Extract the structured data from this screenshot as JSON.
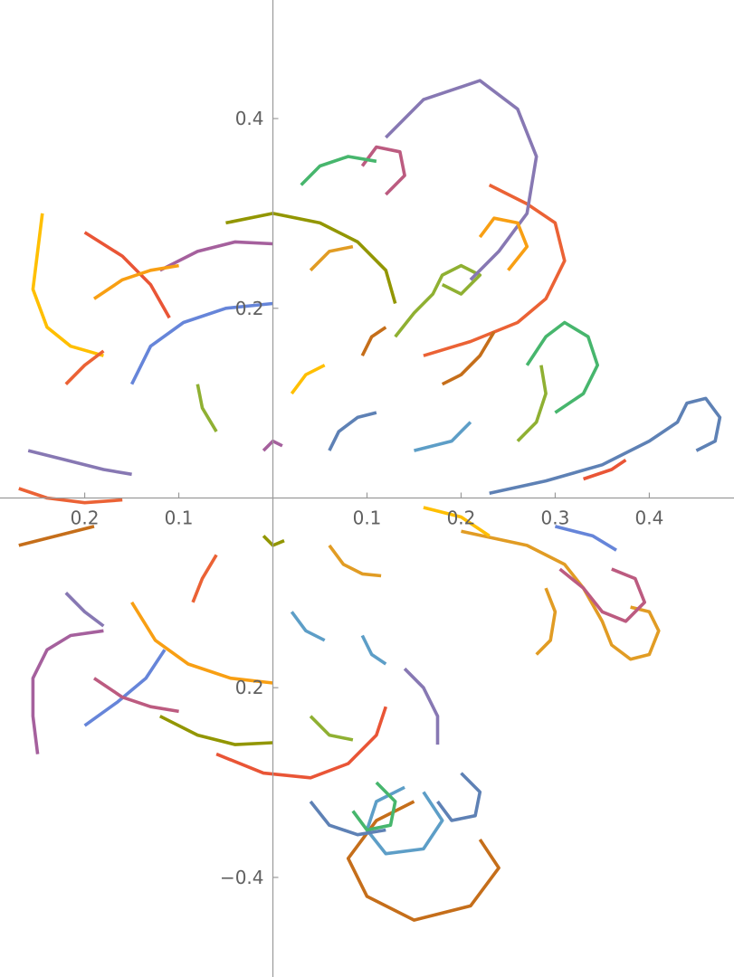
{
  "chart_data": {
    "type": "line",
    "title": "",
    "xlabel": "",
    "ylabel": "",
    "xlim": [
      -0.29,
      0.49
    ],
    "ylim": [
      -0.505,
      0.525
    ],
    "grid": false,
    "x_ticks": [
      {
        "value": -0.2,
        "label": "0.2"
      },
      {
        "value": -0.1,
        "label": "0.1"
      },
      {
        "value": 0.1,
        "label": "0.1"
      },
      {
        "value": 0.2,
        "label": "0.2"
      },
      {
        "value": 0.3,
        "label": "0.3"
      },
      {
        "value": 0.4,
        "label": "0.4"
      }
    ],
    "y_ticks": [
      {
        "value": 0.4,
        "label": "0.4"
      },
      {
        "value": 0.2,
        "label": "0.2"
      },
      {
        "value": -0.2,
        "label": "0.2"
      },
      {
        "value": -0.4,
        "label": "−0.4"
      }
    ],
    "palette": [
      "#5e81b5",
      "#e19c24",
      "#8fb032",
      "#eb6235",
      "#8778b3",
      "#c56e1a",
      "#5d9ec7",
      "#ffbf00",
      "#a5609d",
      "#929600",
      "#e95536",
      "#6685d9",
      "#f89f13",
      "#bc5b80",
      "#47b66d"
    ],
    "series": [
      {
        "values": [
          [
            0.45,
            0.05
          ],
          [
            0.47,
            0.06
          ],
          [
            0.475,
            0.085
          ],
          [
            0.46,
            0.105
          ],
          [
            0.44,
            0.1
          ],
          [
            0.43,
            0.08
          ],
          [
            0.4,
            0.06
          ],
          [
            0.35,
            0.035
          ],
          [
            0.29,
            0.018
          ],
          [
            0.23,
            0.005
          ]
        ]
      },
      {
        "values": [
          [
            0.38,
            -0.115
          ],
          [
            0.4,
            -0.12
          ],
          [
            0.41,
            -0.14
          ],
          [
            0.4,
            -0.165
          ],
          [
            0.38,
            -0.17
          ],
          [
            0.36,
            -0.155
          ],
          [
            0.35,
            -0.13
          ],
          [
            0.33,
            -0.095
          ],
          [
            0.31,
            -0.07
          ],
          [
            0.27,
            -0.05
          ],
          [
            0.2,
            -0.035
          ]
        ]
      },
      {
        "values": [
          [
            0.18,
            0.225
          ],
          [
            0.2,
            0.215
          ],
          [
            0.22,
            0.235
          ],
          [
            0.2,
            0.245
          ],
          [
            0.18,
            0.235
          ],
          [
            0.17,
            0.215
          ],
          [
            0.15,
            0.195
          ],
          [
            0.13,
            0.17
          ]
        ]
      },
      {
        "values": [
          [
            0.23,
            0.33
          ],
          [
            0.27,
            0.31
          ],
          [
            0.3,
            0.29
          ],
          [
            0.31,
            0.25
          ],
          [
            0.29,
            0.21
          ],
          [
            0.26,
            0.185
          ],
          [
            0.21,
            0.165
          ],
          [
            0.16,
            0.15
          ]
        ]
      },
      {
        "values": [
          [
            0.12,
            0.38
          ],
          [
            0.16,
            0.42
          ],
          [
            0.22,
            0.44
          ],
          [
            0.26,
            0.41
          ],
          [
            0.28,
            0.36
          ],
          [
            0.27,
            0.3
          ],
          [
            0.24,
            0.26
          ],
          [
            0.21,
            0.23
          ]
        ]
      },
      {
        "values": [
          [
            0.22,
            -0.36
          ],
          [
            0.24,
            -0.39
          ],
          [
            0.21,
            -0.43
          ],
          [
            0.15,
            -0.445
          ],
          [
            0.1,
            -0.42
          ],
          [
            0.08,
            -0.38
          ],
          [
            0.11,
            -0.34
          ],
          [
            0.15,
            -0.32
          ]
        ]
      },
      {
        "values": [
          [
            0.16,
            -0.31
          ],
          [
            0.18,
            -0.34
          ],
          [
            0.16,
            -0.37
          ],
          [
            0.12,
            -0.375
          ],
          [
            0.1,
            -0.35
          ],
          [
            0.11,
            -0.32
          ],
          [
            0.14,
            -0.305
          ]
        ]
      },
      {
        "values": [
          [
            -0.245,
            0.3
          ],
          [
            -0.25,
            0.26
          ],
          [
            -0.255,
            0.22
          ],
          [
            -0.24,
            0.18
          ],
          [
            -0.215,
            0.16
          ],
          [
            -0.18,
            0.15
          ]
        ]
      },
      {
        "values": [
          [
            -0.25,
            -0.27
          ],
          [
            -0.255,
            -0.23
          ],
          [
            -0.255,
            -0.19
          ],
          [
            -0.24,
            -0.16
          ],
          [
            -0.215,
            -0.145
          ],
          [
            -0.18,
            -0.14
          ]
        ]
      },
      {
        "values": [
          [
            -0.05,
            0.29
          ],
          [
            0.0,
            0.3
          ],
          [
            0.05,
            0.29
          ],
          [
            0.09,
            0.27
          ],
          [
            0.12,
            0.24
          ],
          [
            0.13,
            0.205
          ]
        ]
      },
      {
        "values": [
          [
            -0.06,
            -0.27
          ],
          [
            -0.01,
            -0.29
          ],
          [
            0.04,
            -0.295
          ],
          [
            0.08,
            -0.28
          ],
          [
            0.11,
            -0.25
          ],
          [
            0.12,
            -0.22
          ]
        ]
      },
      {
        "values": [
          [
            -0.15,
            0.12
          ],
          [
            -0.13,
            0.16
          ],
          [
            -0.095,
            0.185
          ],
          [
            -0.05,
            0.2
          ],
          [
            0.0,
            0.205
          ]
        ]
      },
      {
        "values": [
          [
            -0.15,
            -0.11
          ],
          [
            -0.125,
            -0.15
          ],
          [
            -0.09,
            -0.175
          ],
          [
            -0.045,
            -0.19
          ],
          [
            0.0,
            -0.195
          ]
        ]
      },
      {
        "values": [
          [
            0.36,
            -0.075
          ],
          [
            0.385,
            -0.085
          ],
          [
            0.395,
            -0.11
          ],
          [
            0.375,
            -0.13
          ],
          [
            0.35,
            -0.12
          ],
          [
            0.33,
            -0.095
          ],
          [
            0.305,
            -0.075
          ]
        ]
      },
      {
        "values": [
          [
            0.3,
            0.09
          ],
          [
            0.33,
            0.11
          ],
          [
            0.345,
            0.14
          ],
          [
            0.335,
            0.17
          ],
          [
            0.31,
            0.185
          ],
          [
            0.29,
            0.17
          ],
          [
            0.27,
            0.14
          ]
        ]
      },
      {
        "values": [
          [
            0.06,
            0.05
          ],
          [
            0.07,
            0.07
          ],
          [
            0.09,
            0.085
          ],
          [
            0.11,
            0.09
          ]
        ]
      },
      {
        "values": [
          [
            0.06,
            -0.05
          ],
          [
            0.075,
            -0.07
          ],
          [
            0.095,
            -0.08
          ],
          [
            0.115,
            -0.082
          ]
        ]
      },
      {
        "values": [
          [
            -0.06,
            0.07
          ],
          [
            -0.075,
            0.095
          ],
          [
            -0.08,
            0.12
          ]
        ]
      },
      {
        "values": [
          [
            -0.06,
            -0.06
          ],
          [
            -0.075,
            -0.085
          ],
          [
            -0.085,
            -0.11
          ]
        ]
      },
      {
        "values": [
          [
            0.14,
            -0.18
          ],
          [
            0.16,
            -0.2
          ],
          [
            0.175,
            -0.23
          ],
          [
            0.175,
            -0.26
          ]
        ]
      },
      {
        "values": [
          [
            0.18,
            0.12
          ],
          [
            0.2,
            0.13
          ],
          [
            0.22,
            0.15
          ],
          [
            0.235,
            0.175
          ]
        ]
      },
      {
        "values": [
          [
            0.02,
            -0.12
          ],
          [
            0.035,
            -0.14
          ],
          [
            0.055,
            -0.15
          ]
        ]
      },
      {
        "values": [
          [
            0.02,
            0.11
          ],
          [
            0.035,
            0.13
          ],
          [
            0.055,
            0.14
          ]
        ]
      },
      {
        "values": [
          [
            -0.12,
            0.24
          ],
          [
            -0.08,
            0.26
          ],
          [
            -0.04,
            0.27
          ],
          [
            0.0,
            0.268
          ]
        ]
      },
      {
        "values": [
          [
            -0.12,
            -0.23
          ],
          [
            -0.08,
            -0.25
          ],
          [
            -0.04,
            -0.26
          ],
          [
            0.0,
            -0.258
          ]
        ]
      },
      {
        "values": [
          [
            -0.2,
            0.28
          ],
          [
            -0.16,
            0.255
          ],
          [
            -0.13,
            0.225
          ],
          [
            -0.11,
            0.19
          ]
        ]
      },
      {
        "values": [
          [
            -0.2,
            -0.24
          ],
          [
            -0.165,
            -0.215
          ],
          [
            -0.135,
            -0.19
          ],
          [
            -0.115,
            -0.16
          ]
        ]
      },
      {
        "values": [
          [
            0.25,
            0.24
          ],
          [
            0.27,
            0.265
          ],
          [
            0.26,
            0.29
          ],
          [
            0.235,
            0.295
          ],
          [
            0.22,
            0.275
          ]
        ]
      },
      {
        "values": [
          [
            0.12,
            0.32
          ],
          [
            0.14,
            0.34
          ],
          [
            0.135,
            0.365
          ],
          [
            0.11,
            0.37
          ],
          [
            0.095,
            0.35
          ]
        ]
      },
      {
        "values": [
          [
            0.11,
            -0.3
          ],
          [
            0.13,
            -0.32
          ],
          [
            0.125,
            -0.345
          ],
          [
            0.1,
            -0.35
          ],
          [
            0.085,
            -0.33
          ]
        ]
      },
      {
        "values": [
          [
            0.2,
            -0.29
          ],
          [
            0.22,
            -0.31
          ],
          [
            0.215,
            -0.335
          ],
          [
            0.19,
            -0.34
          ],
          [
            0.175,
            -0.32
          ]
        ]
      },
      {
        "values": [
          [
            0.29,
            -0.095
          ],
          [
            0.3,
            -0.12
          ],
          [
            0.295,
            -0.15
          ],
          [
            0.28,
            -0.165
          ]
        ]
      },
      {
        "values": [
          [
            0.26,
            0.06
          ],
          [
            0.28,
            0.08
          ],
          [
            0.29,
            0.11
          ],
          [
            0.285,
            0.14
          ]
        ]
      },
      {
        "values": [
          [
            -0.27,
            0.01
          ],
          [
            -0.24,
            0.0
          ],
          [
            -0.2,
            -0.005
          ],
          [
            -0.16,
            -0.002
          ]
        ]
      },
      {
        "values": [
          [
            -0.26,
            0.05
          ],
          [
            -0.22,
            0.04
          ],
          [
            -0.18,
            0.03
          ],
          [
            -0.15,
            0.025
          ]
        ]
      },
      {
        "values": [
          [
            -0.27,
            -0.05
          ],
          [
            -0.23,
            -0.04
          ],
          [
            -0.19,
            -0.03
          ]
        ]
      },
      {
        "values": [
          [
            0.15,
            0.05
          ],
          [
            0.19,
            0.06
          ],
          [
            0.21,
            0.08
          ]
        ]
      },
      {
        "values": [
          [
            0.16,
            -0.01
          ],
          [
            0.2,
            -0.02
          ],
          [
            0.23,
            -0.04
          ]
        ]
      },
      {
        "values": [
          [
            -0.01,
            0.05
          ],
          [
            0.0,
            0.06
          ],
          [
            0.01,
            0.055
          ]
        ]
      },
      {
        "values": [
          [
            -0.01,
            -0.04
          ],
          [
            0.0,
            -0.05
          ],
          [
            0.012,
            -0.045
          ]
        ]
      },
      {
        "values": [
          [
            0.33,
            0.02
          ],
          [
            0.36,
            0.03
          ],
          [
            0.375,
            0.04
          ]
        ]
      },
      {
        "values": [
          [
            0.3,
            -0.03
          ],
          [
            0.34,
            -0.04
          ],
          [
            0.365,
            -0.055
          ]
        ]
      },
      {
        "values": [
          [
            -0.19,
            0.21
          ],
          [
            -0.16,
            0.23
          ],
          [
            -0.13,
            0.24
          ],
          [
            -0.1,
            0.245
          ]
        ]
      },
      {
        "values": [
          [
            -0.19,
            -0.19
          ],
          [
            -0.16,
            -0.21
          ],
          [
            -0.13,
            -0.22
          ],
          [
            -0.1,
            -0.225
          ]
        ]
      },
      {
        "values": [
          [
            0.03,
            0.33
          ],
          [
            0.05,
            0.35
          ],
          [
            0.08,
            0.36
          ],
          [
            0.11,
            0.355
          ]
        ]
      },
      {
        "values": [
          [
            0.04,
            -0.32
          ],
          [
            0.06,
            -0.345
          ],
          [
            0.09,
            -0.355
          ],
          [
            0.12,
            -0.35
          ]
        ]
      },
      {
        "values": [
          [
            0.04,
            0.24
          ],
          [
            0.06,
            0.26
          ],
          [
            0.085,
            0.265
          ]
        ]
      },
      {
        "values": [
          [
            0.04,
            -0.23
          ],
          [
            0.06,
            -0.25
          ],
          [
            0.085,
            -0.255
          ]
        ]
      },
      {
        "values": [
          [
            -0.22,
            0.12
          ],
          [
            -0.2,
            0.14
          ],
          [
            -0.18,
            0.155
          ]
        ]
      },
      {
        "values": [
          [
            -0.22,
            -0.1
          ],
          [
            -0.2,
            -0.12
          ],
          [
            -0.18,
            -0.135
          ]
        ]
      },
      {
        "values": [
          [
            0.095,
            0.15
          ],
          [
            0.105,
            0.17
          ],
          [
            0.12,
            0.18
          ]
        ]
      },
      {
        "values": [
          [
            0.095,
            -0.145
          ],
          [
            0.105,
            -0.165
          ],
          [
            0.12,
            -0.175
          ]
        ]
      }
    ]
  }
}
